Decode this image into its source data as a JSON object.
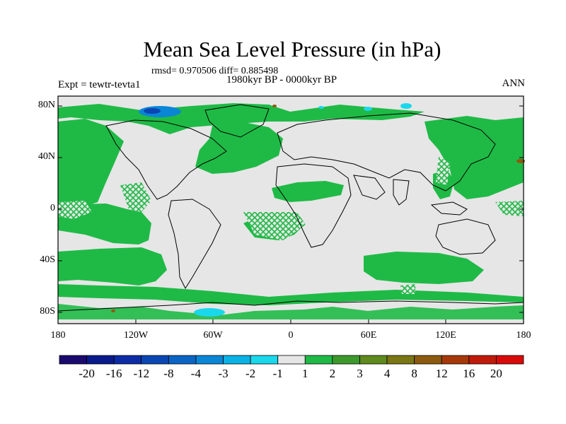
{
  "header": {
    "title": "Mean Sea Level Pressure (in hPa)",
    "stats": "rmsd= 0.970506 diff= 0.885498",
    "period": "1980kyr BP - 0000kyr BP",
    "experiment": "Expt = tewtr-tevta1",
    "season": "ANN"
  },
  "axes": {
    "y_labels": [
      "80N",
      "40N",
      "0",
      "40S",
      "80S"
    ],
    "x_labels": [
      "180",
      "120W",
      "60W",
      "0",
      "60E",
      "120E",
      "180"
    ]
  },
  "colorbar": {
    "labels": [
      "-20",
      "-16",
      "-12",
      "-8",
      "-4",
      "-3",
      "-2",
      "-1",
      "1",
      "2",
      "3",
      "4",
      "8",
      "12",
      "16",
      "20"
    ],
    "colors": [
      "#1a0a6e",
      "#0a1a8c",
      "#0c2ca6",
      "#0a46b4",
      "#0a64c4",
      "#0a86d6",
      "#0ab2e6",
      "#1ad8ec",
      "#e6e6e6",
      "#1fba46",
      "#3c9a2c",
      "#5e8a1e",
      "#7a7614",
      "#8c5a0e",
      "#a6380a",
      "#c01a0a",
      "#d80a0a"
    ]
  },
  "map": {
    "neutral_color": "#e6e6e6",
    "positive_color": "#1fba46",
    "negative_color": "#1ad8ec",
    "strong_negative_color": "#0a64c4"
  }
}
